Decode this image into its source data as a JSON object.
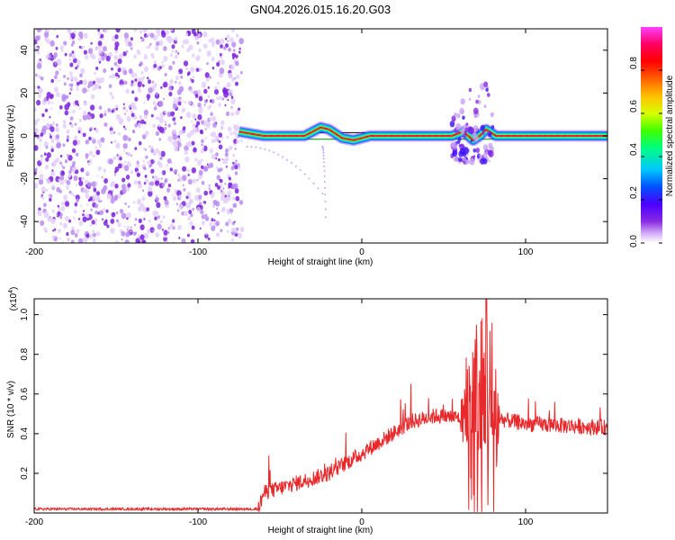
{
  "figure_title": "GN04.2026.015.16.20.G03",
  "chart_data": [
    {
      "type": "heatmap",
      "name": "spectrogram",
      "xlabel": "Height of straight line (km)",
      "ylabel": "Frequency (Hz)",
      "xlim": [
        -200,
        150
      ],
      "ylim": [
        -50,
        50
      ],
      "xticks": [
        -200,
        -100,
        0,
        100
      ],
      "yticks": [
        -40,
        -20,
        0,
        20,
        40
      ],
      "colorbar": {
        "label": "Normalized spectral amplitude",
        "range": [
          0,
          1
        ],
        "ticks": [
          0.0,
          0.2,
          0.4,
          0.6,
          0.8
        ],
        "tick_labels": [
          "0.0",
          "0.2",
          "0.4",
          "0.6",
          "0.8"
        ],
        "colormap": [
          "#ffffff",
          "#d8b8f8",
          "#8a2be2",
          "#4b00ff",
          "#0050ff",
          "#00c8ff",
          "#00ff80",
          "#40ff00",
          "#d8ff00",
          "#ffc000",
          "#ff6000",
          "#ff0000",
          "#ff0060",
          "#ff40ff"
        ]
      },
      "noise_region_x": [
        -200,
        -73
      ],
      "signal_start_x": -75,
      "ridge": [
        {
          "x": -75,
          "y": 2
        },
        {
          "x": -60,
          "y": 0
        },
        {
          "x": -45,
          "y": 0
        },
        {
          "x": -35,
          "y": 0
        },
        {
          "x": -25,
          "y": 4
        },
        {
          "x": -20,
          "y": 3
        },
        {
          "x": -12,
          "y": -1
        },
        {
          "x": -5,
          "y": -2
        },
        {
          "x": 5,
          "y": 0
        },
        {
          "x": 30,
          "y": 0
        },
        {
          "x": 55,
          "y": 0
        },
        {
          "x": 62,
          "y": 2
        },
        {
          "x": 68,
          "y": -2
        },
        {
          "x": 72,
          "y": 0
        },
        {
          "x": 76,
          "y": 3
        },
        {
          "x": 82,
          "y": 0
        },
        {
          "x": 100,
          "y": 0
        },
        {
          "x": 150,
          "y": 0
        }
      ],
      "burst_regions": [
        {
          "x": [
            55,
            80
          ],
          "y": [
            -12,
            25
          ]
        }
      ],
      "horizontal_lines_y": [
        1.5,
        -1.5
      ],
      "stray_points_x": [
        -70,
        -22
      ]
    },
    {
      "type": "line",
      "name": "snr",
      "xlabel": "Height of straight line (km)",
      "ylabel": "SNR (10 * v/v)",
      "multiplier_label": "(x10",
      "multiplier_exp": "4",
      "multiplier_close": ")",
      "xlim": [
        -200,
        150
      ],
      "ylim": [
        0,
        1.08
      ],
      "xticks": [
        -200,
        -100,
        0,
        100
      ],
      "yticks": [
        0.2,
        0.4,
        0.6,
        0.8,
        1.0
      ],
      "color": "#e8282a",
      "envelope": [
        {
          "x": -200,
          "y": 0.02
        },
        {
          "x": -63,
          "y": 0.02
        },
        {
          "x": -60,
          "y": 0.1
        },
        {
          "x": -40,
          "y": 0.15
        },
        {
          "x": -20,
          "y": 0.2
        },
        {
          "x": -10,
          "y": 0.25
        },
        {
          "x": 0,
          "y": 0.3
        },
        {
          "x": 15,
          "y": 0.38
        },
        {
          "x": 30,
          "y": 0.46
        },
        {
          "x": 45,
          "y": 0.49
        },
        {
          "x": 60,
          "y": 0.48
        },
        {
          "x": 80,
          "y": 0.48
        },
        {
          "x": 100,
          "y": 0.45
        },
        {
          "x": 150,
          "y": 0.43
        }
      ],
      "oscillation_region_x": [
        60,
        84
      ],
      "peak_value": 1.08
    }
  ]
}
